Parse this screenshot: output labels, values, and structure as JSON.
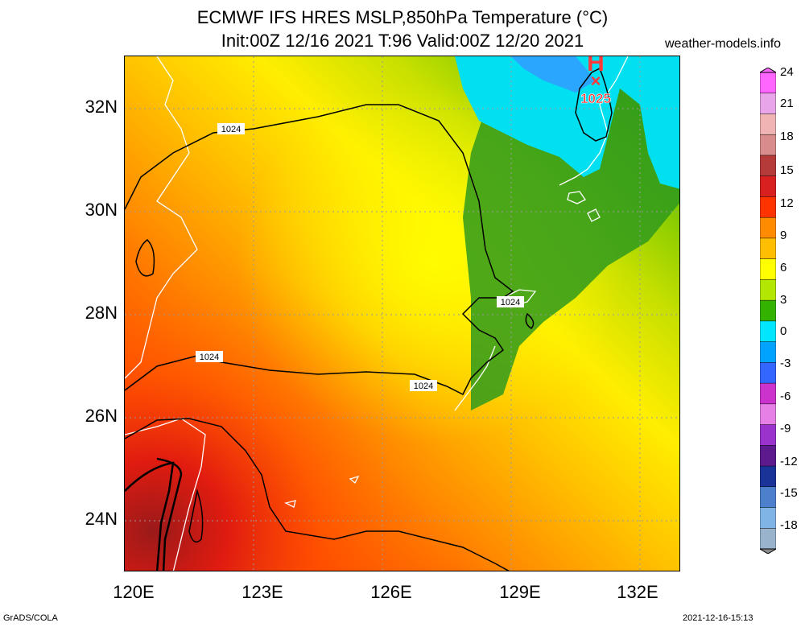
{
  "title": {
    "line1": "ECMWF IFS HRES MSLP,850hPa Temperature (°C)",
    "line2": "Init:00Z 12/16 2021 T:96 Valid:00Z 12/20 2021"
  },
  "site": "weather-models.info",
  "axes": {
    "lat_labels": [
      "32N",
      "30N",
      "28N",
      "26N",
      "24N"
    ],
    "lon_labels": [
      "120E",
      "123E",
      "126E",
      "129E",
      "132E"
    ]
  },
  "colorbar": {
    "labels": [
      "24",
      "21",
      "18",
      "15",
      "12",
      "9",
      "6",
      "3",
      "0",
      "-3",
      "-6",
      "-9",
      "-12",
      "-15",
      "-18"
    ],
    "colors": [
      "#ff66ff",
      "#e8a6e8",
      "#f0b4b4",
      "#d98c8c",
      "#b53a3a",
      "#d92020",
      "#ff3300",
      "#ff8c00",
      "#ffbf00",
      "#ffff00",
      "#b3e600",
      "#33b300",
      "#00e6ff",
      "#00a3ff",
      "#3366ff",
      "#cc33cc",
      "#e680e6",
      "#9933cc",
      "#5c1a8c",
      "#1a3399",
      "#4d80cc",
      "#80b3e6",
      "#99b3cc"
    ]
  },
  "isobar_labels": [
    "1024",
    "1024",
    "1024",
    "1024"
  ],
  "high": {
    "letter": "H",
    "marker": "×",
    "value": "1025"
  },
  "footer": {
    "left": "GrADS/COLA",
    "right": "2021-12-16-15:13"
  }
}
